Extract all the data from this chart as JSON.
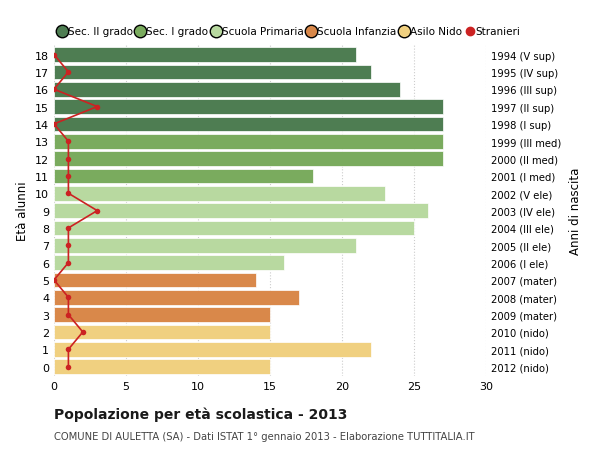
{
  "ages": [
    18,
    17,
    16,
    15,
    14,
    13,
    12,
    11,
    10,
    9,
    8,
    7,
    6,
    5,
    4,
    3,
    2,
    1,
    0
  ],
  "right_labels": [
    "1994 (V sup)",
    "1995 (IV sup)",
    "1996 (III sup)",
    "1997 (II sup)",
    "1998 (I sup)",
    "1999 (III med)",
    "2000 (II med)",
    "2001 (I med)",
    "2002 (V ele)",
    "2003 (IV ele)",
    "2004 (III ele)",
    "2005 (II ele)",
    "2006 (I ele)",
    "2007 (mater)",
    "2008 (mater)",
    "2009 (mater)",
    "2010 (nido)",
    "2011 (nido)",
    "2012 (nido)"
  ],
  "bar_values": [
    21,
    22,
    24,
    27,
    27,
    27,
    27,
    18,
    23,
    26,
    25,
    21,
    16,
    14,
    17,
    15,
    15,
    22,
    15
  ],
  "bar_colors": [
    "#4e7d52",
    "#4e7d52",
    "#4e7d52",
    "#4e7d52",
    "#4e7d52",
    "#7aab5e",
    "#7aab5e",
    "#7aab5e",
    "#b8d9a0",
    "#b8d9a0",
    "#b8d9a0",
    "#b8d9a0",
    "#b8d9a0",
    "#d9884a",
    "#d9884a",
    "#d9884a",
    "#f0d080",
    "#f0d080",
    "#f0d080"
  ],
  "stranieri_values": [
    0,
    1,
    0,
    3,
    0,
    1,
    1,
    1,
    1,
    3,
    1,
    1,
    1,
    0,
    1,
    1,
    2,
    1,
    1
  ],
  "title_bold": "Popolazione per età scolastica - 2013",
  "subtitle": "COMUNE DI AULETTA (SA) - Dati ISTAT 1° gennaio 2013 - Elaborazione TUTTITALIA.IT",
  "ylabel": "Età alunni",
  "right_ylabel": "Anni di nascita",
  "xlim": [
    0,
    30
  ],
  "xticks": [
    0,
    5,
    10,
    15,
    20,
    25,
    30
  ],
  "legend_labels": [
    "Sec. II grado",
    "Sec. I grado",
    "Scuola Primaria",
    "Scuola Infanzia",
    "Asilo Nido",
    "Stranieri"
  ],
  "legend_colors": [
    "#4e7d52",
    "#7aab5e",
    "#b8d9a0",
    "#d9884a",
    "#f0d080",
    "#cc2222"
  ],
  "stranieri_color": "#cc2222",
  "grid_color": "#cccccc",
  "bg_color": "#ffffff",
  "bar_height": 0.85
}
